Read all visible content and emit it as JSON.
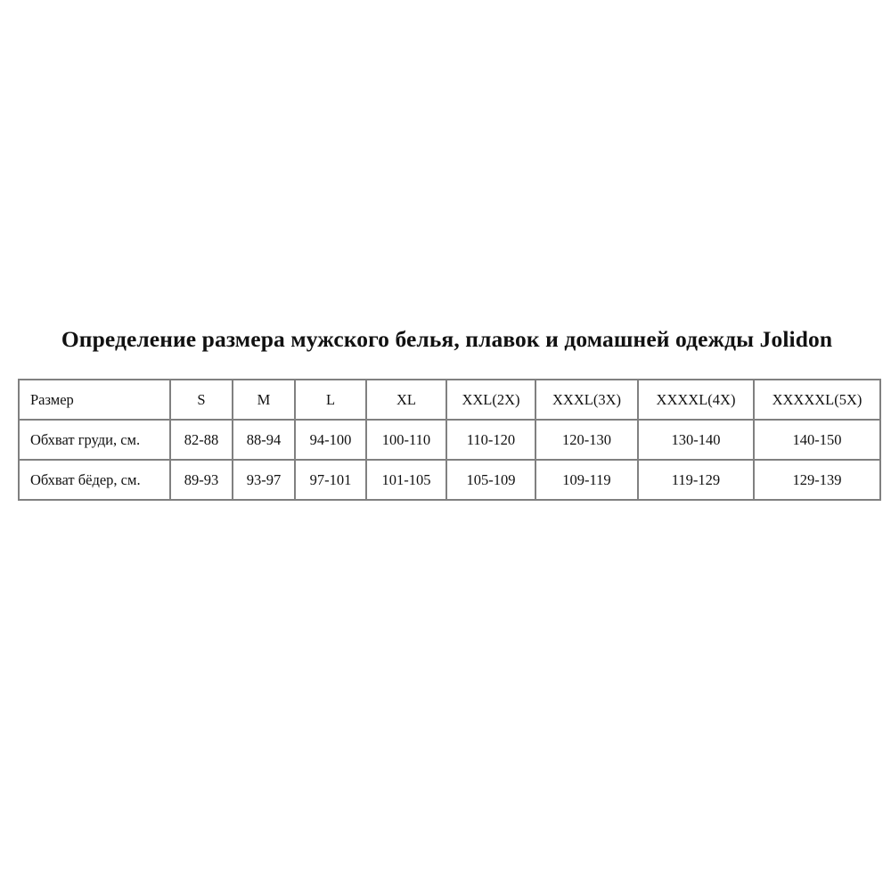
{
  "title": "Определение размера мужского белья, плавок и домашней одежды Jolidon",
  "table": {
    "header": [
      "Размер",
      "S",
      "M",
      "L",
      "XL",
      "XXL(2X)",
      "XXXL(3X)",
      "XXXXL(4X)",
      "XXXXXL(5X)"
    ],
    "rows": [
      [
        "Обхват груди, см.",
        "82-88",
        "88-94",
        "94-100",
        "100-110",
        "110-120",
        "120-130",
        "130-140",
        "140-150"
      ],
      [
        "Обхват бёдер, см.",
        "89-93",
        "93-97",
        "97-101",
        "101-105",
        "105-109",
        "109-119",
        "119-129",
        "129-139"
      ]
    ]
  }
}
